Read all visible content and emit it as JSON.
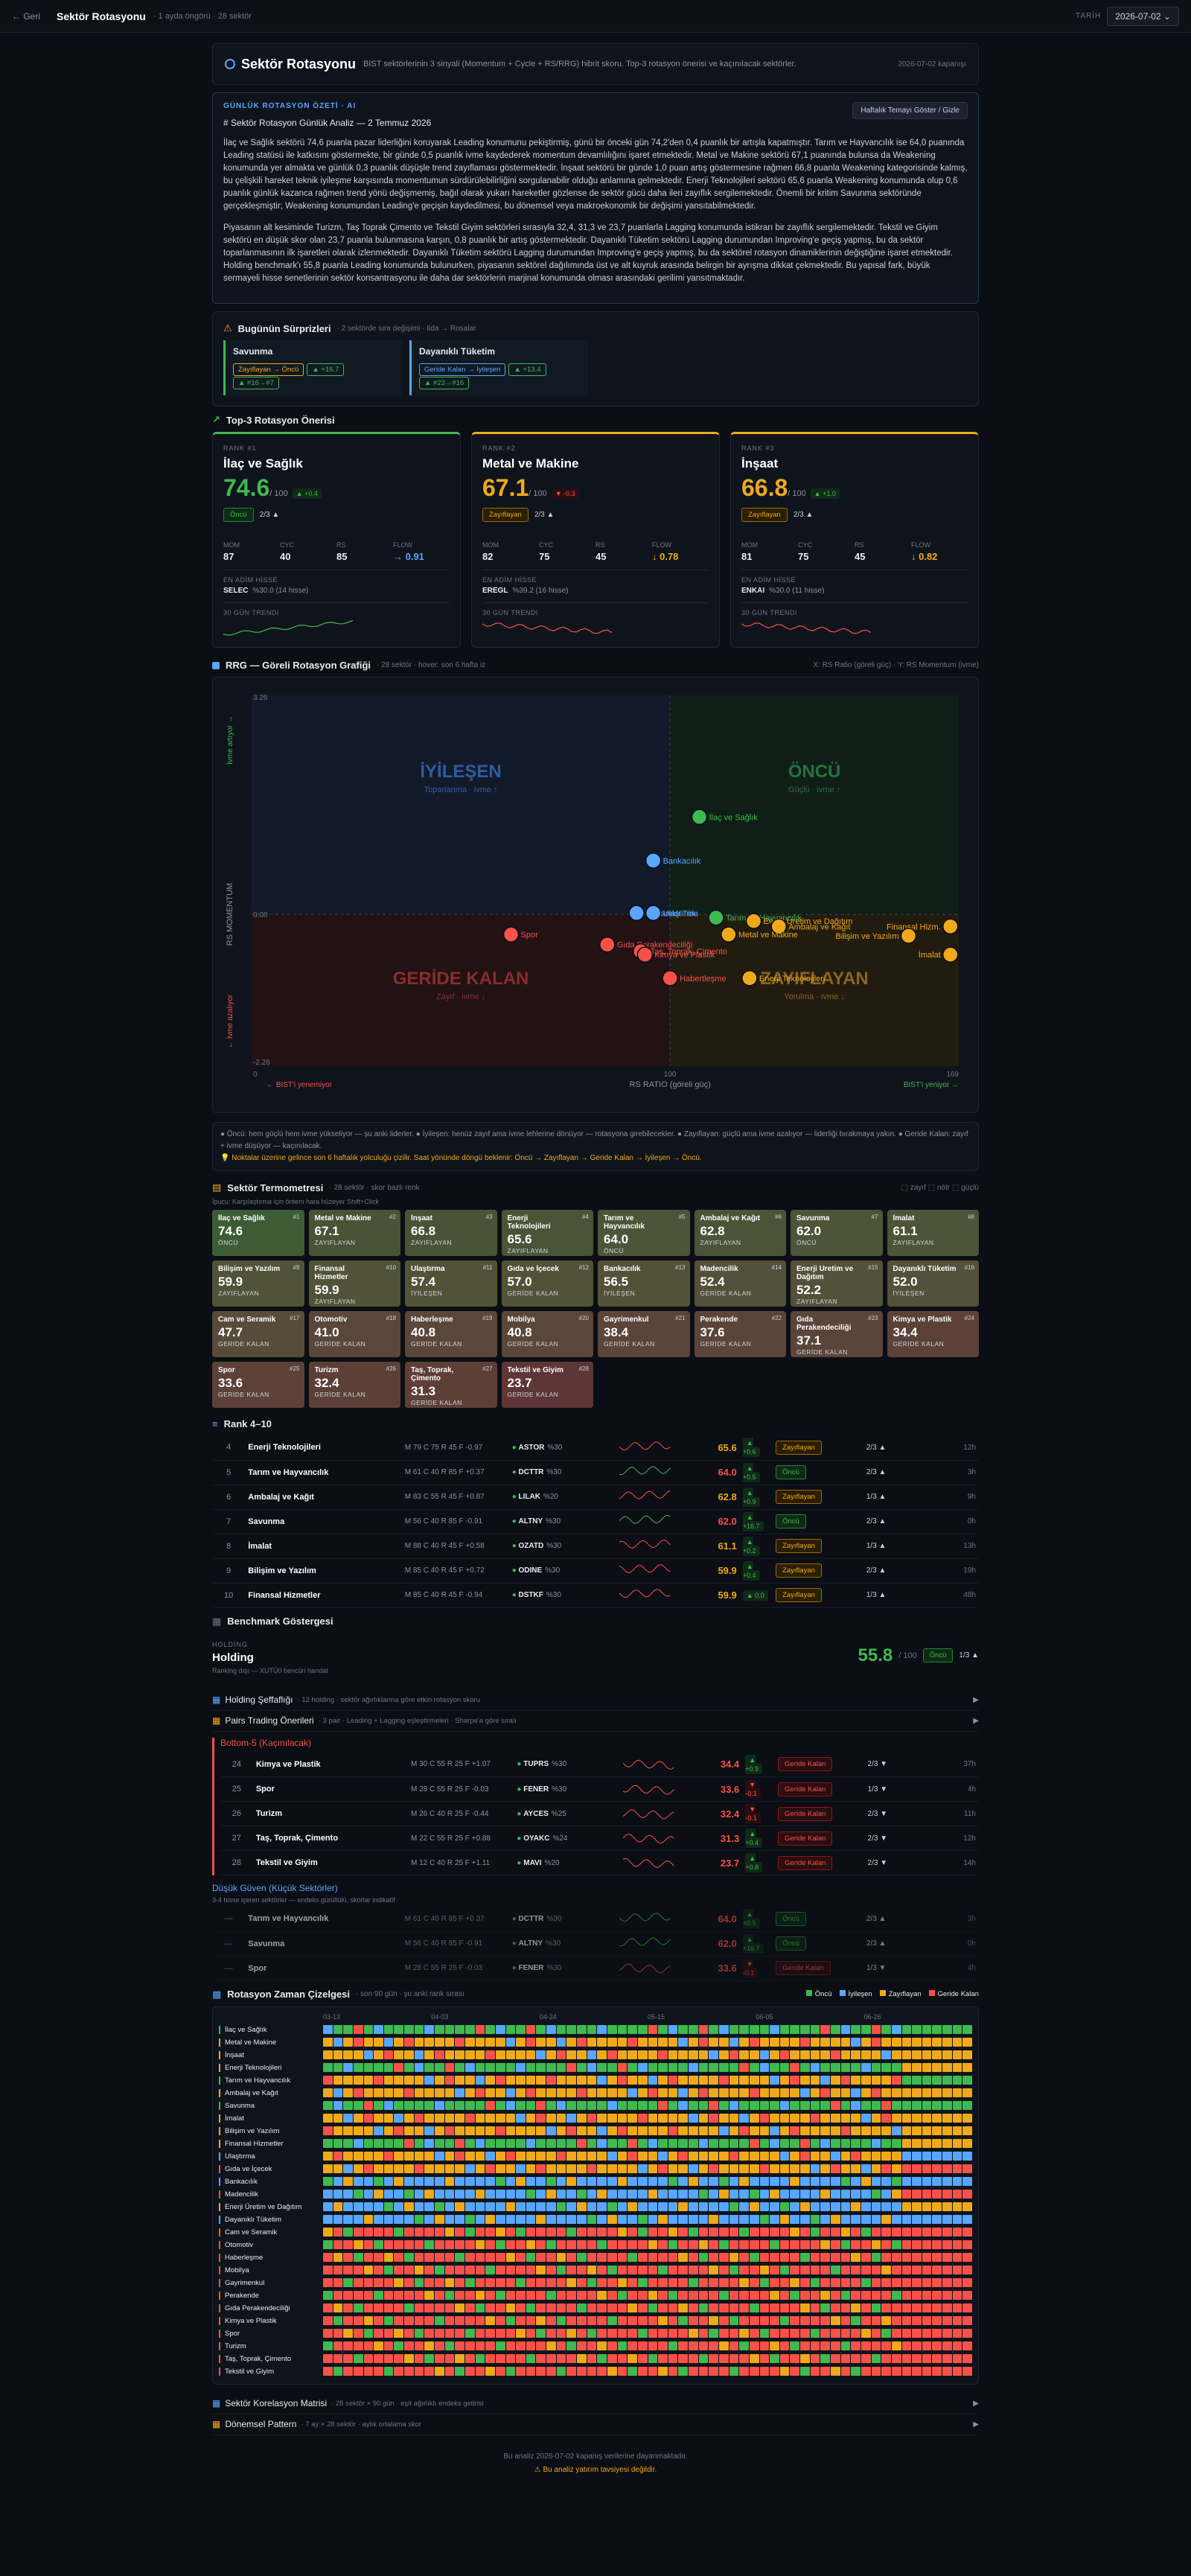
{
  "topbar": {
    "back": "← Geri",
    "title": "Sektör Rotasyonu",
    "subtitle": "· 1 ayda öngörü · 28 sektör",
    "date_label": "TARİH",
    "date": "2026-07-02 ⌄"
  },
  "header": {
    "title": "Sektör Rotasyonu",
    "desc": "BIST sektörlerinin 3 sinyali (Momentum + Cycle + RS/RRG) hibrit skoru. Top-3 rotasyon önerisi ve kaçınılacak sektörler.",
    "stamp": "2026-07-02 kapanışı"
  },
  "ai": {
    "kicker": "GÜNLÜK ROTASYON ÖZETİ · AI",
    "button": "Haftalık Temayı Göster / Gizle",
    "heading": "# Sektör Rotasyon Günlük Analiz — 2 Temmuz 2026",
    "p1": "İlaç ve Sağlık sektörü 74,6 puanla pazar liderliğini koruyarak Leading konumunu pekiştirmiş, günü bir önceki gün 74,2'den 0,4 puanlık bir artışla kapatmıştır. Tarım ve Hayvancılık ise 64,0 puanında Leading statüsü ile katkısını göstermekte, bir günde 0,5 puanlık ivme kaydederek momentum devamlılığını işaret etmektedir. Metal ve Makine sektörü 67,1 puanında bulunsa da Weakening konumunda yer almakta ve günlük 0,3 puanlık düşüşle trend zayıflaması göstermektedir. İnşaat sektörü bir günde 1,0 puan artış göstermesine rağmen 66,8 puanla Weakening kategorisinde kalmış, bu çelişkili hareket teknik iyileşme karşısında momentumun sürdürülebilirliğini sorgulanabilir olduğu anlamına gelmektedir. Enerji Teknolojileri sektörü 65,6 puanla Weakening konumunda olup 0,6 puanlık günlük kazanca rağmen trend yönü değişmemiş, bağıl olarak yukarı hareketler gözlense de sektör gücü daha ileri zayıflık sergilemektedir. Önemli bir kritim Savunma sektöründe gerçekleşmiştir; Weakening konumundan Leading'e geçişin kaydedilmesi, bu dönemsel veya makroekonomik bir değişimi yansıtabilmektedir.",
    "p2": "Piyasanın alt kesiminde Turizm, Taş Toprak Çimento ve Tekstil Giyim sektörleri sırasıyla 32,4, 31,3 ve 23,7 puanlarla Lagging konumunda istikrarı bir zayıflık sergilemektedir. Tekstil ve Giyim sektörü en düşük skor olan 23,7 puanla bulunmasına karşın, 0,8 puanlık bir artış göstermektedir. Dayanıklı Tüketim sektörü Lagging durumundan Improving'e geçiş yapmış, bu da sektör toparlanmasının ilk işaretleri olarak izlenmektedir. Dayanıklı Tüketim sektörü Lagging durumundan Improving'e geçiş yapmış, bu da sektörel rotasyon dinamiklerinin değiştiğine işaret etmektedir. Holding benchmark'ı 55,8 puanla Leading konumunda bulunurken, piyasanın sektörel dağılımında üst ve alt kuyruk arasında belirgin bir ayrışma dikkat çekmektedir. Bu yapısal fark, büyük sermayeli hisse senetlerinin sektör konsantrasyonu ile daha dar sektörlerin marjinal konumunda olması arasındaki gerilimi yansıtmaktadır."
  },
  "surprises": {
    "title": "Bugünün Sürprizleri",
    "note": "· 2 sektörde sıra değişimi · Ilda → Rosalar",
    "items": [
      {
        "name": "Savunma",
        "c1": "Zayıflayan → Öncü",
        "c2": "▲ +16.7",
        "c3": "▲ #16→#7"
      },
      {
        "name": "Dayanıklı Tüketim",
        "c1": "Geride Kalan → İyileşen",
        "c2": "▲ +13.4",
        "c3": "▲ #23→#16"
      }
    ]
  },
  "top3": {
    "title": "Top-3 Rotasyon Önerisi",
    "cards": [
      {
        "rank": "RANK #1",
        "name": "İlaç ve Sağlık",
        "score": "74.6",
        "of": "/ 100",
        "delta": "▲ +0.4",
        "badge": "Öncü",
        "dir": "2/3 ▲",
        "mom": "87",
        "cyc": "40",
        "rs": "85",
        "flow": "→ 0.91",
        "stock_l": "EN ADİM HİSSE",
        "stock": "SELEC",
        "stock_n": "%30.0  (14 hisse)",
        "trend": "30 GÜN TRENDI"
      },
      {
        "rank": "RANK #2",
        "name": "Metal ve Makine",
        "score": "67.1",
        "of": "/ 100",
        "delta": "▼ -0.3",
        "badge": "Zayıflayan",
        "dir": "2/3 ▲",
        "mom": "82",
        "cyc": "75",
        "rs": "45",
        "flow": "↓ 0.78",
        "stock_l": "EN ADİM HİSSE",
        "stock": "EREGL",
        "stock_n": "%39.2  (16 hisse)",
        "trend": "30 GÜN TRENDI"
      },
      {
        "rank": "RANK #3",
        "name": "İnşaat",
        "score": "66.8",
        "of": "/ 100",
        "delta": "▲ +1.0",
        "badge": "Zayıflayan",
        "dir": "2/3 ▲",
        "mom": "81",
        "cyc": "75",
        "rs": "45",
        "flow": "↓ 0.82",
        "stock_l": "EN ADİM HİSSE",
        "stock": "ENKAI",
        "stock_n": "%30.0  (11 hisse)",
        "trend": "30 GÜN TRENDI"
      }
    ]
  },
  "stat_labels": {
    "mom": "MOM",
    "cyc": "CYC",
    "rs": "RS",
    "flow": "FLOW"
  },
  "rrg": {
    "title": "RRG — Göreli Rotasyon Grafiği",
    "note": "· 28 sektör · hover: son 6 hafta iz",
    "axes_note": "X: RS Ratio (göreli güç) · Y: RS Momentum (ivme)",
    "q_improving": "İYİLEŞEN",
    "q_improving_s": "Toparlanma · ivme ↑",
    "q_leading": "ÖNCÜ",
    "q_leading_s": "Güçlü · ivme ↑",
    "q_lagging": "GERİDE KALAN",
    "q_lagging_s": "Zayıf · ivme ↓",
    "q_weakening": "ZAYIFLAYAN",
    "q_weakening_s": "Yorulma · ivme ↓",
    "y_top": "3.26",
    "y_mid": "0.00",
    "y_bot": "-2.26",
    "x_left": "0",
    "x_mid": "100",
    "x_right": "169",
    "x_label": "RS RATIO (göreli güç)",
    "y_label": "RS MOMENTUM",
    "y_up": "İvme artıyor →",
    "y_down": "← İvme azalıyor",
    "x_low": "← BIST'i yenemiyor",
    "x_high": "BIST'i yeniyor →"
  },
  "chart_data": {
    "type": "scatter",
    "xlim": [
      0,
      169
    ],
    "ylim": [
      -2.26,
      3.26
    ],
    "xlabel": "RS RATIO (göreli güç)",
    "ylabel": "RS MOMENTUM",
    "points": [
      {
        "name": "İlaç ve Sağlık",
        "x": 107,
        "y": 1.45,
        "q": "L"
      },
      {
        "name": "Bankacılık",
        "x": 96,
        "y": 0.8,
        "q": "I"
      },
      {
        "name": "Dayanıklı Tük.",
        "x": 92,
        "y": 0.02,
        "q": "I"
      },
      {
        "name": "Ulaştırma",
        "x": 96,
        "y": 0.02,
        "q": "I"
      },
      {
        "name": "Tarım ve Hayvancılık",
        "x": 111,
        "y": -0.05,
        "q": "L"
      },
      {
        "name": "Enerji Üretim ve Dağıtım",
        "x": 120,
        "y": -0.1,
        "q": "W"
      },
      {
        "name": "Ambalaj ve Kağıt",
        "x": 126,
        "y": -0.18,
        "q": "W"
      },
      {
        "name": "Metal ve Makine",
        "x": 114,
        "y": -0.3,
        "q": "W"
      },
      {
        "name": "Finansal Hizm.",
        "x": 167,
        "y": -0.18,
        "q": "W"
      },
      {
        "name": "Bilişim ve Yazılım",
        "x": 157,
        "y": -0.32,
        "q": "W"
      },
      {
        "name": "İmalat",
        "x": 167,
        "y": -0.6,
        "q": "W"
      },
      {
        "name": "Enerji Teknolojileri",
        "x": 119,
        "y": -0.95,
        "q": "W"
      },
      {
        "name": "Spor",
        "x": 62,
        "y": -0.3,
        "q": "G"
      },
      {
        "name": "Gıda Perakendeciliği",
        "x": 85,
        "y": -0.45,
        "q": "G"
      },
      {
        "name": "Taş, Toprak, Çimento",
        "x": 93,
        "y": -0.55,
        "q": "G"
      },
      {
        "name": "Kimya ve Plastik",
        "x": 94,
        "y": -0.6,
        "q": "G"
      },
      {
        "name": "Habertleşme",
        "x": 100,
        "y": -0.95,
        "q": "G"
      }
    ]
  },
  "legend": {
    "l1": "● Öncü: hem güçlü hem ivme yükseliyor — şu anki liderler.   ● İyileşen: henüz zayıf ama ivme lehlerine dönüyor — rotasyona girebilecekler.   ● Zayıflayan: güçlü ama ivme azalıyor — liderliği bırakmaya yakın.   ● Geride Kalan: zayıf + ivme düşüyor — kaçınılacak.",
    "l2": "💡 Noktalar üzerine gelince son 6 haftalık yolculuğu çizilir. Saat yönünde döngü beklenir: Öncü → Zayıflayan → Geride Kalan → İyileşen → Öncü."
  },
  "thermo": {
    "title": "Sektör Termometresi",
    "note": "· 28 sektör · skor bazlı renk",
    "sub": "İpucu: Karşılaştırma için öntem hara hüzeyer  Shift+Click",
    "legend": "⬚ zayıf  ⬚ nötr  ⬚ güçlü",
    "tiles": [
      [
        "İlaç ve Sağlık",
        "74.6",
        "ÖNCÜ",
        "#1",
        "#3d5c36"
      ],
      [
        "Metal ve Makine",
        "67.1",
        "ZAYIFLAYAN",
        "#2",
        "#475436"
      ],
      [
        "İnşaat",
        "66.8",
        "ZAYIFLAYAN",
        "#3",
        "#475436"
      ],
      [
        "Enerji Teknolojileri",
        "65.6",
        "ZAYIFLAYAN",
        "#4",
        "#4a5538"
      ],
      [
        "Tarım ve Hayvancılık",
        "64.0",
        "ÖNCÜ",
        "#5",
        "#4c5538"
      ],
      [
        "Ambalaj ve Kağıt",
        "62.8",
        "ZAYIFLAYAN",
        "#6",
        "#4c5438"
      ],
      [
        "Savunma",
        "62.0",
        "ÖNCÜ",
        "#7",
        "#4e5438"
      ],
      [
        "İmalat",
        "61.1",
        "ZAYIFLAYAN",
        "#8",
        "#4e5438"
      ],
      [
        "Bilişim ve Yazılım",
        "59.9",
        "ZAYIFLAYAN",
        "#9",
        "#515338"
      ],
      [
        "Finansal Hizmetler",
        "59.9",
        "ZAYIFLAYAN",
        "#10",
        "#515338"
      ],
      [
        "Ulaştırma",
        "57.4",
        "İYİLEŞEN",
        "#11",
        "#525238"
      ],
      [
        "Gıda ve İçecek",
        "57.0",
        "GERİDE KALAN",
        "#12",
        "#525238"
      ],
      [
        "Bankacılık",
        "56.5",
        "İYİLEŞEN",
        "#13",
        "#535238"
      ],
      [
        "Madencilik",
        "52.4",
        "GERİDE KALAN",
        "#14",
        "#55503a"
      ],
      [
        "Enerji Üretim ve Dağıtım",
        "52.2",
        "ZAYIFLAYAN",
        "#15",
        "#55503a"
      ],
      [
        "Dayanıklı Tüketim",
        "52.0",
        "İYİLEŞEN",
        "#16",
        "#55503a"
      ],
      [
        "Cam ve Seramik",
        "47.7",
        "GERİDE KALAN",
        "#17",
        "#574c3a"
      ],
      [
        "Otomotiv",
        "41.0",
        "GERİDE KALAN",
        "#18",
        "#5a4739"
      ],
      [
        "Haberleşme",
        "40.8",
        "GERİDE KALAN",
        "#19",
        "#5a4739"
      ],
      [
        "Mobilya",
        "40.8",
        "GERİDE KALAN",
        "#20",
        "#5a4739"
      ],
      [
        "Gayrimenkul",
        "38.4",
        "GERİDE KALAN",
        "#21",
        "#5b4439"
      ],
      [
        "Perakende",
        "37.6",
        "GERİDE KALAN",
        "#22",
        "#5b4439"
      ],
      [
        "Gıda Perakendeciliği",
        "37.1",
        "GERİDE KALAN",
        "#23",
        "#5b4439"
      ],
      [
        "Kimya ve Plastik",
        "34.4",
        "GERİDE KALAN",
        "#24",
        "#5c4138"
      ],
      [
        "Spor",
        "33.6",
        "GERİDE KALAN",
        "#25",
        "#5c4138"
      ],
      [
        "Turizm",
        "32.4",
        "GERİDE KALAN",
        "#26",
        "#5c4038"
      ],
      [
        "Taş, Toprak, Çimento",
        "31.3",
        "GERİDE KALAN",
        "#27",
        "#5d3f38"
      ],
      [
        "Tekstil ve Giyim",
        "23.7",
        "GERİDE KALAN",
        "#28",
        "#5e3636"
      ]
    ]
  },
  "rank410": {
    "title": "Rank 4–10",
    "rows": [
      [
        "4",
        "Enerji Teknolojileri",
        "M 79  C 75  R 45  F -0.97",
        "ASTOR",
        "%30",
        "65.6",
        "▲ +0.6",
        "Zayıflayan",
        "w",
        "2/3 ▲",
        "12h",
        "o"
      ],
      [
        "5",
        "Tarım ve Hayvancılık",
        "M 61  C 40  R 85  F +0.37",
        "DCTTR",
        "%30",
        "64.0",
        "▲ +0.5",
        "Öncü",
        "l",
        "2/3 ▲",
        "3h",
        "g"
      ],
      [
        "6",
        "Ambalaj ve Kağıt",
        "M 83  C 55  R 45  F +0.87",
        "LILAK",
        "%20",
        "62.8",
        "▲ +0.9",
        "Zayıflayan",
        "w",
        "1/3 ▲",
        "9h",
        "o"
      ],
      [
        "7",
        "Savunma",
        "M 56  C 40  R 85  F -0.91",
        "ALTNY",
        "%30",
        "62.0",
        "▲ +16.7",
        "Öncü",
        "l",
        "2/3 ▲",
        "0h",
        "g"
      ],
      [
        "8",
        "İmalat",
        "M 88  C 40  R 45  F +0.58",
        "OZATD",
        "%30",
        "61.1",
        "▲ +0.2",
        "Zayıflayan",
        "w",
        "1/3 ▲",
        "13h",
        "o"
      ],
      [
        "9",
        "Bilişim ve Yazılım",
        "M 85  C 40  R 45  F +0.72",
        "ODINE",
        "%30",
        "59.9",
        "▲ +0.4",
        "Zayıflayan",
        "w",
        "2/3 ▲",
        "19h",
        "o"
      ],
      [
        "10",
        "Finansal Hizmetler",
        "M 85  C 40  R 45  F -0.94",
        "DSTKF",
        "%30",
        "59.9",
        "▲ 0.0",
        "Zayıflayan",
        "w",
        "1/3 ▲",
        "48h",
        "o"
      ]
    ]
  },
  "bench": {
    "title": "Benchmark Göstergesi",
    "kicker": "HOLDİNG",
    "name": "Holding",
    "sub": "Ranking dışı — XUTÜ0 bencüri handat",
    "score": "55.8",
    "of": "/ 100",
    "badge": "Öncü",
    "dir": "1/3 ▲"
  },
  "holding": {
    "title": "Holding Şeffaflığı",
    "note": "· 12 holding · sektör ağırlıklarına göre etkin rotasyon skoru"
  },
  "pairs": {
    "title": "Pairs Trading Önerileri",
    "note": "· 3 pair · Leading + Lagging eşleştirmeleri · Sharpe'a göre sıralı"
  },
  "bottom5": {
    "title": "Bottom-5 (Kaçınılacak)",
    "rows": [
      [
        "24",
        "Kimya ve Plastik",
        "M 30  C 55  R 25  F +1.07",
        "TUPRS",
        "%30",
        "34.4",
        "▲ +0.9",
        "Geride Kalan",
        "g",
        "2/3 ▼",
        "37h",
        "r"
      ],
      [
        "25",
        "Spor",
        "M 28  C 55  R 25  F -0.03",
        "FENER",
        "%30",
        "33.6",
        "▼ -0.1",
        "Geride Kalan",
        "g",
        "1/3 ▼",
        "4h",
        "r"
      ],
      [
        "26",
        "Turizm",
        "M 26  C 40  R 25  F -0.44",
        "AYCES",
        "%25",
        "32.4",
        "▼ -0.1",
        "Geride Kalan",
        "g",
        "2/3 ▼",
        "11h",
        "r"
      ],
      [
        "27",
        "Taş, Toprak, Çimento",
        "M 22  C 55  R 25  F +0.88",
        "OYAKC",
        "%24",
        "31.3",
        "▲ +0.4",
        "Geride Kalan",
        "g",
        "2/3 ▼",
        "12h",
        "r"
      ],
      [
        "28",
        "Tekstil ve Giyim",
        "M 12  C 40  R 25  F +1.11",
        "MAVI",
        "%20",
        "23.7",
        "▲ +0.8",
        "Geride Kalan",
        "g",
        "2/3 ▼",
        "14h",
        "r"
      ]
    ]
  },
  "lowconf": {
    "title": "Düşük Güven (Küçük Sektörler)",
    "note": "3-4 hisse içeren sektörler — endeks gürültülü, skorlar indikatif",
    "rows": [
      [
        "—",
        "Tarım ve Hayvancılık",
        "M 61  C 40  R 85  F +0.37",
        "DCTTR",
        "%30",
        "64.0",
        "▲ +0.5",
        "Öncü",
        "l",
        "2/3 ▲",
        "3h",
        "g"
      ],
      [
        "—",
        "Savunma",
        "M 56  C 40  R 85  F -0.91",
        "ALTNY",
        "%30",
        "62.0",
        "▲ +16.7",
        "Öncü",
        "l",
        "2/3 ▲",
        "0h",
        "g"
      ],
      [
        "—",
        "Spor",
        "M 28  C 55  R 25  F -0.03",
        "FENER",
        "%30",
        "33.6",
        "▼ -0.1",
        "Geride Kalan",
        "g",
        "1/3 ▼",
        "4h",
        "r"
      ]
    ]
  },
  "timeline": {
    "title": "Rotasyon Zaman Çizelgesi",
    "note": "· son 90 gün · şu anki rank sırası",
    "legend": [
      "Öncü",
      "İyileşen",
      "Zayıflayan",
      "Geride Kalan"
    ],
    "dates": [
      "03-13",
      "04-03",
      "04-24",
      "05-15",
      "06-05",
      "06-26"
    ]
  },
  "corr": {
    "title": "Sektör Korelasyon Matrisi",
    "note": "· 28 sektör × 90 gün · eşit ağırlıklı endeks getirisi"
  },
  "pattern": {
    "title": "Dönemsel Pattern",
    "note": "· 7 ay × 28 sektör · aylık ortalama skor"
  },
  "footer": {
    "l1": "Bu analiz 2026-07-02 kapanış verilerine dayanmaktadır.",
    "l2": "⚠ Bu analiz yatırım tavsiyesi değildir."
  }
}
